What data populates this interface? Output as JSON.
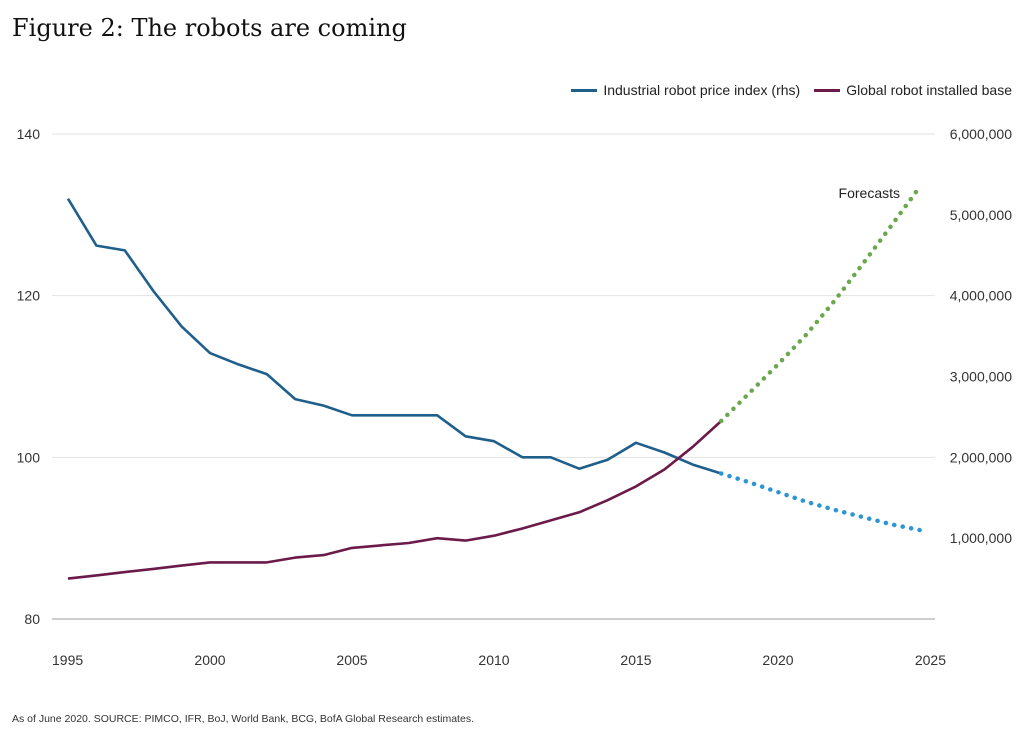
{
  "page": {
    "title": "Figure 2: The robots are coming",
    "source": "As of June 2020. SOURCE: PIMCO, IFR, BoJ, World Bank, BCG, BofA Global Research estimates."
  },
  "colors": {
    "price": "#1f5f8b",
    "installed": "#6b1a4a",
    "price_forecast": "#2b95d6",
    "installed_forecast": "#6aa84f",
    "grid": "#e3e3e3",
    "axis": "#bdbdbd"
  },
  "chart_data": {
    "type": "line",
    "legend": [
      "Industrial robot price index (rhs)",
      "Global robot installed base"
    ],
    "legend_position": "top-right",
    "annotation": "Forecasts",
    "x_ticks": [
      "1995",
      "2000",
      "2005",
      "2010",
      "2015",
      "2020",
      "2025"
    ],
    "xlim": [
      1995,
      2025
    ],
    "left_axis": {
      "ticks": [
        "80",
        "100",
        "120",
        "140"
      ],
      "lim": [
        80,
        140
      ]
    },
    "right_axis": {
      "ticks": [
        "1,000,000",
        "2,000,000",
        "3,000,000",
        "4,000,000",
        "5,000,000",
        "6,000,000"
      ],
      "lim": [
        0,
        6000000
      ]
    },
    "grid": true,
    "series": [
      {
        "name": "Industrial robot price index (rhs)",
        "axis": "left",
        "style": "solid",
        "x": [
          1995,
          1996,
          1997,
          1998,
          1999,
          2000,
          2001,
          2002,
          2003,
          2004,
          2005,
          2006,
          2007,
          2008,
          2009,
          2010,
          2011,
          2012,
          2013,
          2014,
          2015,
          2016,
          2017,
          2018
        ],
        "y": [
          132,
          126.2,
          125.6,
          120.6,
          116.2,
          112.9,
          111.5,
          110.3,
          107.2,
          106.4,
          105.2,
          105.2,
          105.2,
          105.2,
          102.6,
          102.0,
          100.0,
          100.0,
          98.6,
          99.7,
          101.8,
          100.6,
          99.1,
          98.0
        ]
      },
      {
        "name": "",
        "axis": "left",
        "style": "dotted",
        "x": [
          2018,
          2019,
          2020,
          2021,
          2022,
          2023,
          2024,
          2025
        ],
        "y": [
          98.0,
          96.9,
          95.7,
          94.5,
          93.5,
          92.6,
          91.7,
          91.0
        ]
      },
      {
        "name": "Global robot installed base",
        "axis": "right",
        "style": "solid",
        "x": [
          1995,
          1996,
          1997,
          1998,
          1999,
          2000,
          2001,
          2002,
          2003,
          2004,
          2005,
          2006,
          2007,
          2008,
          2009,
          2010,
          2011,
          2012,
          2013,
          2014,
          2015,
          2016,
          2017,
          2018
        ],
        "y": [
          500000,
          540000,
          580000,
          620000,
          660000,
          700000,
          700000,
          700000,
          760000,
          790000,
          880000,
          910000,
          940000,
          1000000,
          970000,
          1030000,
          1120000,
          1220000,
          1320000,
          1470000,
          1640000,
          1850000,
          2130000,
          2450000
        ]
      },
      {
        "name": "",
        "axis": "right",
        "style": "dotted",
        "x": [
          2018,
          2019,
          2020,
          2021,
          2022,
          2023,
          2024,
          2025
        ],
        "y": [
          2450000,
          2800000,
          3150000,
          3520000,
          3940000,
          4400000,
          4870000,
          5350000
        ]
      }
    ]
  }
}
